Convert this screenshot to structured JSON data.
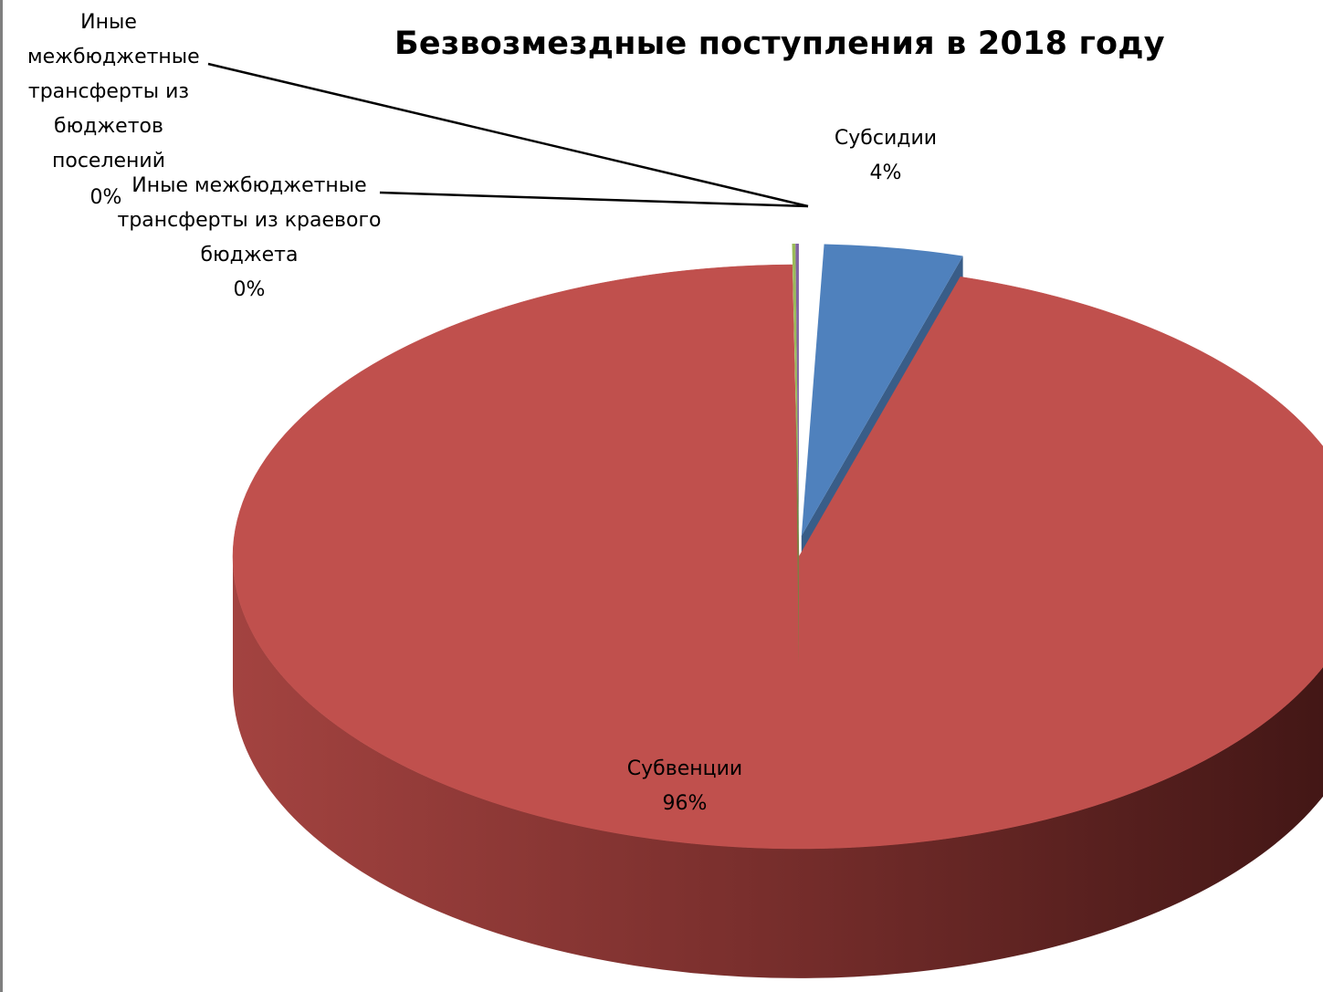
{
  "chart_data": {
    "type": "pie",
    "style": "3d-exploded",
    "title": "Безвозмездные поступления в 2018 году",
    "slices": [
      {
        "name": "Субсидии",
        "value": 4,
        "label": "4%",
        "color": "#4f81bd"
      },
      {
        "name": "Субвенции",
        "value": 96,
        "label": "96%",
        "color": "#c0504d"
      },
      {
        "name": "Иные межбюджетные трансферты из краевого бюджета",
        "value": 0,
        "label": "0%",
        "color": "#9bbb59"
      },
      {
        "name": "Иные межбюджетные трансферты из бюджетов поселений",
        "value": 0,
        "label": "0%",
        "color": "#8064a2"
      }
    ],
    "legend": "none"
  },
  "labels": {
    "subsidies": {
      "name": "Субсидии",
      "pct": "4%"
    },
    "subventions": {
      "name": "Субвенции",
      "pct": "96%"
    },
    "regional": {
      "line1": "Иные межбюджетные",
      "line2": "трансферты из краевого",
      "line3": "бюджета",
      "pct": "0%"
    },
    "settlements": {
      "line1": "Иные",
      "line2": "межбюджетные",
      "line3": "трансферты из",
      "line4": "бюджетов",
      "line5": "поселений",
      "pct": "0%"
    }
  }
}
